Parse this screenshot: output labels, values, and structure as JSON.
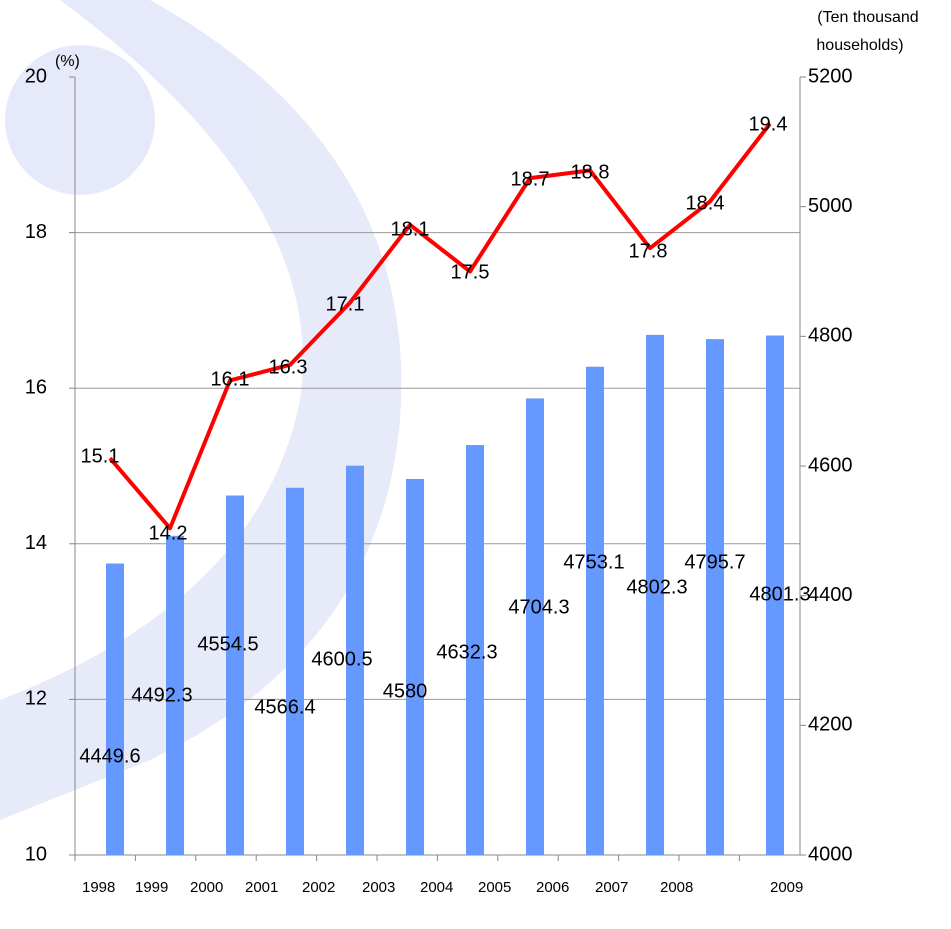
{
  "chart_data": {
    "type": "combo",
    "y_label": "(%)",
    "y2_label_line1": "(Ten thousand",
    "y2_label_line2": "households)",
    "categories": [
      "1998",
      "1999",
      "2000",
      "2001",
      "2002",
      "2003",
      "2004",
      "2005",
      "2006",
      "2007",
      "2008",
      "2009"
    ],
    "series": [
      {
        "type": "bar",
        "color": "#6699ff",
        "axis": "y2",
        "values": [
          4449.6,
          4492.3,
          4554.5,
          4566.4,
          4600.5,
          4580,
          4632.3,
          4704.3,
          4753.1,
          4802.3,
          4795.7,
          4801.3
        ]
      },
      {
        "type": "line",
        "color": "#ff0000",
        "values": [
          15.1,
          14.2,
          16.1,
          16.3,
          17.1,
          18.1,
          17.5,
          18.7,
          18.8,
          17.8,
          18.4,
          19.4
        ]
      }
    ],
    "ylim": [
      10,
      20
    ],
    "yticks": [
      10,
      12,
      14,
      16,
      18,
      20
    ],
    "y2lim": [
      4000,
      5200
    ],
    "y2ticks": [
      4000,
      4200,
      4400,
      4600,
      4800,
      5000,
      5200
    ],
    "grid": true
  }
}
